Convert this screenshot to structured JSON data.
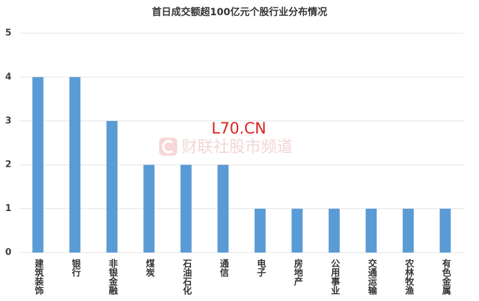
{
  "chart_data": {
    "type": "bar",
    "title": "首日成交额超100亿元个股行业分布情况",
    "categories": [
      "建筑装饰",
      "银行",
      "非银金融",
      "煤炭",
      "石油石化",
      "通信",
      "电子",
      "房地产",
      "公用事业",
      "交通运输",
      "农林牧渔",
      "有色金属"
    ],
    "values": [
      4,
      4,
      3,
      2,
      2,
      2,
      1,
      1,
      1,
      1,
      1,
      1
    ],
    "color": "#5b9bd5",
    "ylim": [
      0,
      5
    ],
    "yticks": [
      0,
      1,
      2,
      3,
      4,
      5
    ],
    "grid": true,
    "annotations": [
      "L70.CN",
      "财联社股市频道"
    ]
  }
}
